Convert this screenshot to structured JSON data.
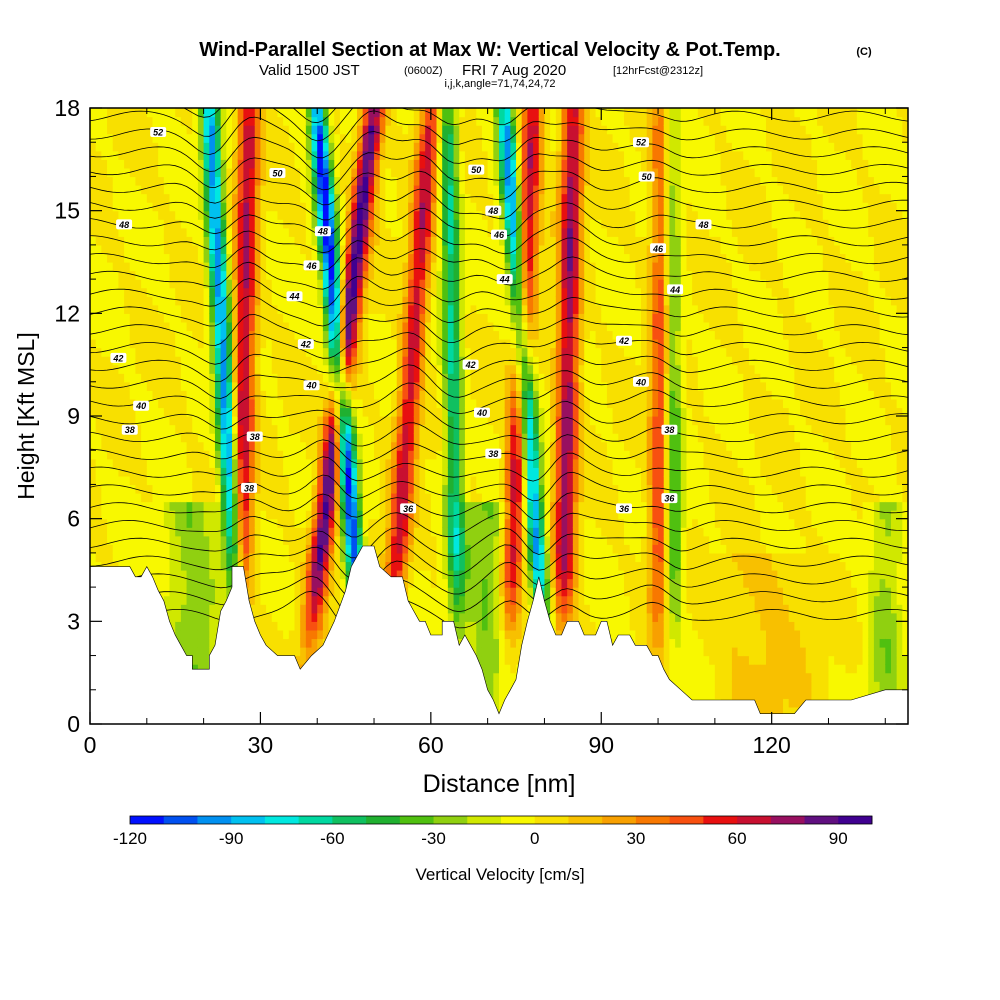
{
  "header": {
    "title": "Wind-Parallel Section at Max W: Vertical Velocity & Pot.Temp.",
    "title_mark": "(C)",
    "valid_prefix": "Valid 1500 JST",
    "valid_z": "(0600Z)",
    "valid_date": "FRI 7 Aug 2020",
    "valid_fcst": "[12hrFcst@2312z]",
    "params": "i,j,k,angle=71,74,24,72"
  },
  "chart_data": {
    "type": "heatmap",
    "xlabel": "Distance [nm]",
    "ylabel": "Height [Kft MSL]",
    "xlim": [
      0,
      144
    ],
    "ylim": [
      0,
      18
    ],
    "x_ticks": [
      "0",
      "30",
      "60",
      "90",
      "120"
    ],
    "y_ticks": [
      "0",
      "3",
      "6",
      "9",
      "12",
      "15",
      "18"
    ],
    "colorbar": {
      "label": "Vertical Velocity [cm/s]",
      "range": [
        -120,
        100
      ],
      "ticks": [
        "-120",
        "-90",
        "-60",
        "-30",
        "0",
        "30",
        "60",
        "90"
      ],
      "colors": [
        "#0010ff",
        "#0050f0",
        "#0090f0",
        "#00c0f0",
        "#00e8e0",
        "#00d8a0",
        "#10c060",
        "#20b030",
        "#50c010",
        "#90d010",
        "#d0e800",
        "#f8f800",
        "#f8e000",
        "#f8c000",
        "#f8a000",
        "#f87800",
        "#f85010",
        "#e81010",
        "#c81030",
        "#981060",
        "#601080",
        "#400090"
      ]
    },
    "updrafts": [
      {
        "x_base": 26,
        "x_top": 28,
        "peak": 70
      },
      {
        "x_base": 37,
        "x_top": 50,
        "peak": 95
      },
      {
        "x_base": 52,
        "x_top": 60,
        "peak": 65
      },
      {
        "x_base": 73,
        "x_top": 78,
        "peak": 70
      },
      {
        "x_base": 83,
        "x_top": 85,
        "peak": 75
      },
      {
        "x_base": 100,
        "x_top": 101,
        "peak": 55
      }
    ],
    "downdrafts": [
      {
        "x_base": 27,
        "x_top": 21,
        "peak": -95
      },
      {
        "x_base": 49,
        "x_top": 40,
        "peak": -115
      },
      {
        "x_base": 65,
        "x_top": 63,
        "peak": -60
      },
      {
        "x_base": 81,
        "x_top": 73,
        "peak": -95
      },
      {
        "x_base": 103,
        "x_top": 102,
        "peak": -50
      }
    ],
    "terrain": [
      [
        0,
        4.6
      ],
      [
        7,
        4.6
      ],
      [
        8,
        4.3
      ],
      [
        9,
        4.3
      ],
      [
        10,
        4.6
      ],
      [
        11,
        4.3
      ],
      [
        12,
        3.9
      ],
      [
        13,
        3.6
      ],
      [
        14,
        3.0
      ],
      [
        15,
        2.6
      ],
      [
        16,
        2.3
      ],
      [
        17,
        2.0
      ],
      [
        18,
        2.0
      ],
      [
        18,
        1.6
      ],
      [
        21,
        1.6
      ],
      [
        21,
        2.0
      ],
      [
        22,
        2.3
      ],
      [
        23,
        3.3
      ],
      [
        24,
        3.6
      ],
      [
        25,
        4.0
      ],
      [
        25,
        4.6
      ],
      [
        27,
        4.6
      ],
      [
        28,
        3.6
      ],
      [
        29,
        3.0
      ],
      [
        30,
        2.6
      ],
      [
        31,
        2.3
      ],
      [
        33,
        2.0
      ],
      [
        36,
        2.0
      ],
      [
        37,
        1.6
      ],
      [
        39,
        2.0
      ],
      [
        41,
        2.3
      ],
      [
        43,
        3.0
      ],
      [
        45,
        3.9
      ],
      [
        46,
        4.6
      ],
      [
        47,
        4.9
      ],
      [
        48,
        5.2
      ],
      [
        50,
        5.2
      ],
      [
        51,
        4.6
      ],
      [
        53,
        4.3
      ],
      [
        55,
        4.3
      ],
      [
        56,
        3.6
      ],
      [
        57,
        3.3
      ],
      [
        58,
        3.0
      ],
      [
        59,
        3.0
      ],
      [
        60,
        2.6
      ],
      [
        62,
        2.6
      ],
      [
        62,
        3.0
      ],
      [
        64,
        3.0
      ],
      [
        65,
        2.3
      ],
      [
        66,
        2.6
      ],
      [
        67,
        2.3
      ],
      [
        68,
        2.0
      ],
      [
        69,
        1.6
      ],
      [
        70,
        1.0
      ],
      [
        71,
        0.7
      ],
      [
        72,
        0.3
      ],
      [
        73,
        0.7
      ],
      [
        74,
        1.0
      ],
      [
        75,
        1.3
      ],
      [
        76,
        2.3
      ],
      [
        77,
        3.0
      ],
      [
        78,
        3.6
      ],
      [
        79,
        4.3
      ],
      [
        80,
        3.6
      ],
      [
        81,
        3.0
      ],
      [
        82,
        2.6
      ],
      [
        83,
        2.6
      ],
      [
        84,
        3.0
      ],
      [
        86,
        3.0
      ],
      [
        87,
        2.6
      ],
      [
        89,
        2.6
      ],
      [
        90,
        3.0
      ],
      [
        91,
        3.0
      ],
      [
        92,
        2.3
      ],
      [
        93,
        2.6
      ],
      [
        95,
        2.6
      ],
      [
        96,
        2.3
      ],
      [
        98,
        2.3
      ],
      [
        99,
        2.0
      ],
      [
        100,
        2.0
      ],
      [
        101,
        1.6
      ],
      [
        102,
        1.3
      ],
      [
        104,
        1.0
      ],
      [
        106,
        0.7
      ],
      [
        112,
        0.7
      ],
      [
        117,
        0.7
      ],
      [
        118,
        0.3
      ],
      [
        124,
        0.3
      ],
      [
        126,
        0.7
      ],
      [
        130,
        0.7
      ],
      [
        132,
        0.7
      ],
      [
        134,
        0.7
      ],
      [
        140,
        1.0
      ],
      [
        144,
        1.0
      ]
    ],
    "theta_labels": [
      {
        "label": "52",
        "x": 12,
        "y": 17.3
      },
      {
        "label": "50",
        "x": 33,
        "y": 16.1
      },
      {
        "label": "48",
        "x": 6,
        "y": 14.6
      },
      {
        "label": "48",
        "x": 41,
        "y": 14.4
      },
      {
        "label": "46",
        "x": 39,
        "y": 13.4
      },
      {
        "label": "44",
        "x": 36,
        "y": 12.5
      },
      {
        "label": "42",
        "x": 38,
        "y": 11.1
      },
      {
        "label": "42",
        "x": 5,
        "y": 10.7
      },
      {
        "label": "40",
        "x": 39,
        "y": 9.9
      },
      {
        "label": "40",
        "x": 9,
        "y": 9.3
      },
      {
        "label": "38",
        "x": 7,
        "y": 8.6
      },
      {
        "label": "38",
        "x": 29,
        "y": 8.4
      },
      {
        "label": "38",
        "x": 28,
        "y": 6.9
      },
      {
        "label": "36",
        "x": 56,
        "y": 6.3
      },
      {
        "label": "50",
        "x": 68,
        "y": 16.2
      },
      {
        "label": "48",
        "x": 71,
        "y": 15.0
      },
      {
        "label": "46",
        "x": 72,
        "y": 14.3
      },
      {
        "label": "44",
        "x": 73,
        "y": 13.0
      },
      {
        "label": "42",
        "x": 67,
        "y": 10.5
      },
      {
        "label": "40",
        "x": 69,
        "y": 9.1
      },
      {
        "label": "38",
        "x": 71,
        "y": 7.9
      },
      {
        "label": "52",
        "x": 97,
        "y": 17.0
      },
      {
        "label": "50",
        "x": 98,
        "y": 16.0
      },
      {
        "label": "48",
        "x": 108,
        "y": 14.6
      },
      {
        "label": "46",
        "x": 100,
        "y": 13.9
      },
      {
        "label": "44",
        "x": 103,
        "y": 12.7
      },
      {
        "label": "42",
        "x": 94,
        "y": 11.2
      },
      {
        "label": "40",
        "x": 97,
        "y": 10.0
      },
      {
        "label": "38",
        "x": 102,
        "y": 8.6
      },
      {
        "label": "36",
        "x": 94,
        "y": 6.3
      },
      {
        "label": "36",
        "x": 102,
        "y": 6.6
      }
    ]
  }
}
